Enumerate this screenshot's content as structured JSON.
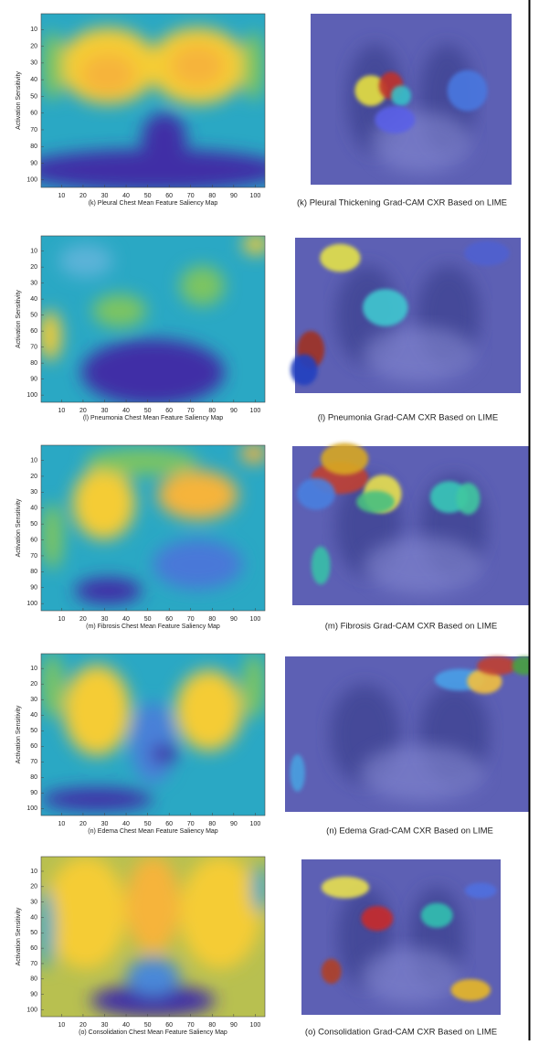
{
  "axis": {
    "y_label": "Activation Sensitivity",
    "xticks": [
      10,
      20,
      30,
      40,
      50,
      60,
      70,
      80,
      90,
      100
    ],
    "yticks": [
      10,
      20,
      30,
      40,
      50,
      60,
      70,
      80,
      90,
      100
    ]
  },
  "panels": [
    {
      "map_caption": "(k) Pleural Chest Mean Feature Saliency Map",
      "cam_caption": "(k) Pleural Thickening Grad-CAM CXR Based on LIME"
    },
    {
      "map_caption": "(l) Pneumonia Chest Mean Feature Saliency Map",
      "cam_caption": "(l) Pneumonia Grad-CAM CXR Based on LIME"
    },
    {
      "map_caption": "(m) Fibrosis Chest Mean Feature Saliency Map",
      "cam_caption": "(m) Fibrosis Grad-CAM CXR Based on LIME"
    },
    {
      "map_caption": "(n) Edema Chest Mean Feature Saliency Map",
      "cam_caption": "(n) Edema Grad-CAM CXR Based on LIME"
    },
    {
      "map_caption": "(o) Consolidation Chest Mean Feature Saliency Map",
      "cam_caption": "(o) Consolidation Grad-CAM CXR Based on LIME"
    }
  ]
}
